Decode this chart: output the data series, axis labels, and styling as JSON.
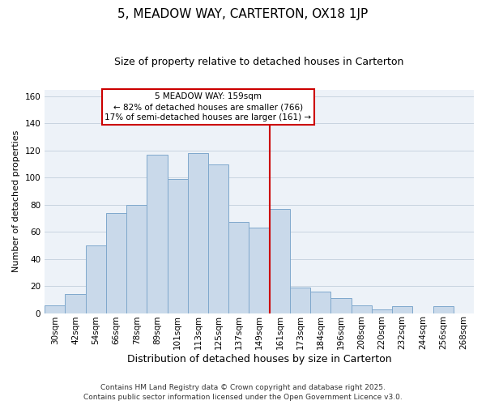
{
  "title": "5, MEADOW WAY, CARTERTON, OX18 1JP",
  "subtitle": "Size of property relative to detached houses in Carterton",
  "xlabel": "Distribution of detached houses by size in Carterton",
  "ylabel": "Number of detached properties",
  "bar_labels": [
    "30sqm",
    "42sqm",
    "54sqm",
    "66sqm",
    "78sqm",
    "89sqm",
    "101sqm",
    "113sqm",
    "125sqm",
    "137sqm",
    "149sqm",
    "161sqm",
    "173sqm",
    "184sqm",
    "196sqm",
    "208sqm",
    "220sqm",
    "232sqm",
    "244sqm",
    "256sqm",
    "268sqm"
  ],
  "bar_values": [
    6,
    14,
    50,
    74,
    80,
    117,
    99,
    118,
    110,
    67,
    63,
    77,
    19,
    16,
    11,
    6,
    3,
    5,
    0,
    5,
    0
  ],
  "bar_color": "#c9d9ea",
  "bar_edge_color": "#7fa8cc",
  "grid_color": "#c8d4e0",
  "vline_x_index": 11,
  "vline_color": "#cc0000",
  "annotation_title": "5 MEADOW WAY: 159sqm",
  "annotation_line1": "← 82% of detached houses are smaller (766)",
  "annotation_line2": "17% of semi-detached houses are larger (161) →",
  "annotation_box_facecolor": "#ffffff",
  "annotation_box_edgecolor": "#cc0000",
  "ylim": [
    0,
    165
  ],
  "yticks": [
    0,
    20,
    40,
    60,
    80,
    100,
    120,
    140,
    160
  ],
  "footnote1": "Contains HM Land Registry data © Crown copyright and database right 2025.",
  "footnote2": "Contains public sector information licensed under the Open Government Licence v3.0.",
  "title_fontsize": 11,
  "subtitle_fontsize": 9,
  "xlabel_fontsize": 9,
  "ylabel_fontsize": 8,
  "tick_fontsize": 7.5,
  "annotation_fontsize": 7.5,
  "footnote_fontsize": 6.5,
  "bg_color": "#edf2f8"
}
